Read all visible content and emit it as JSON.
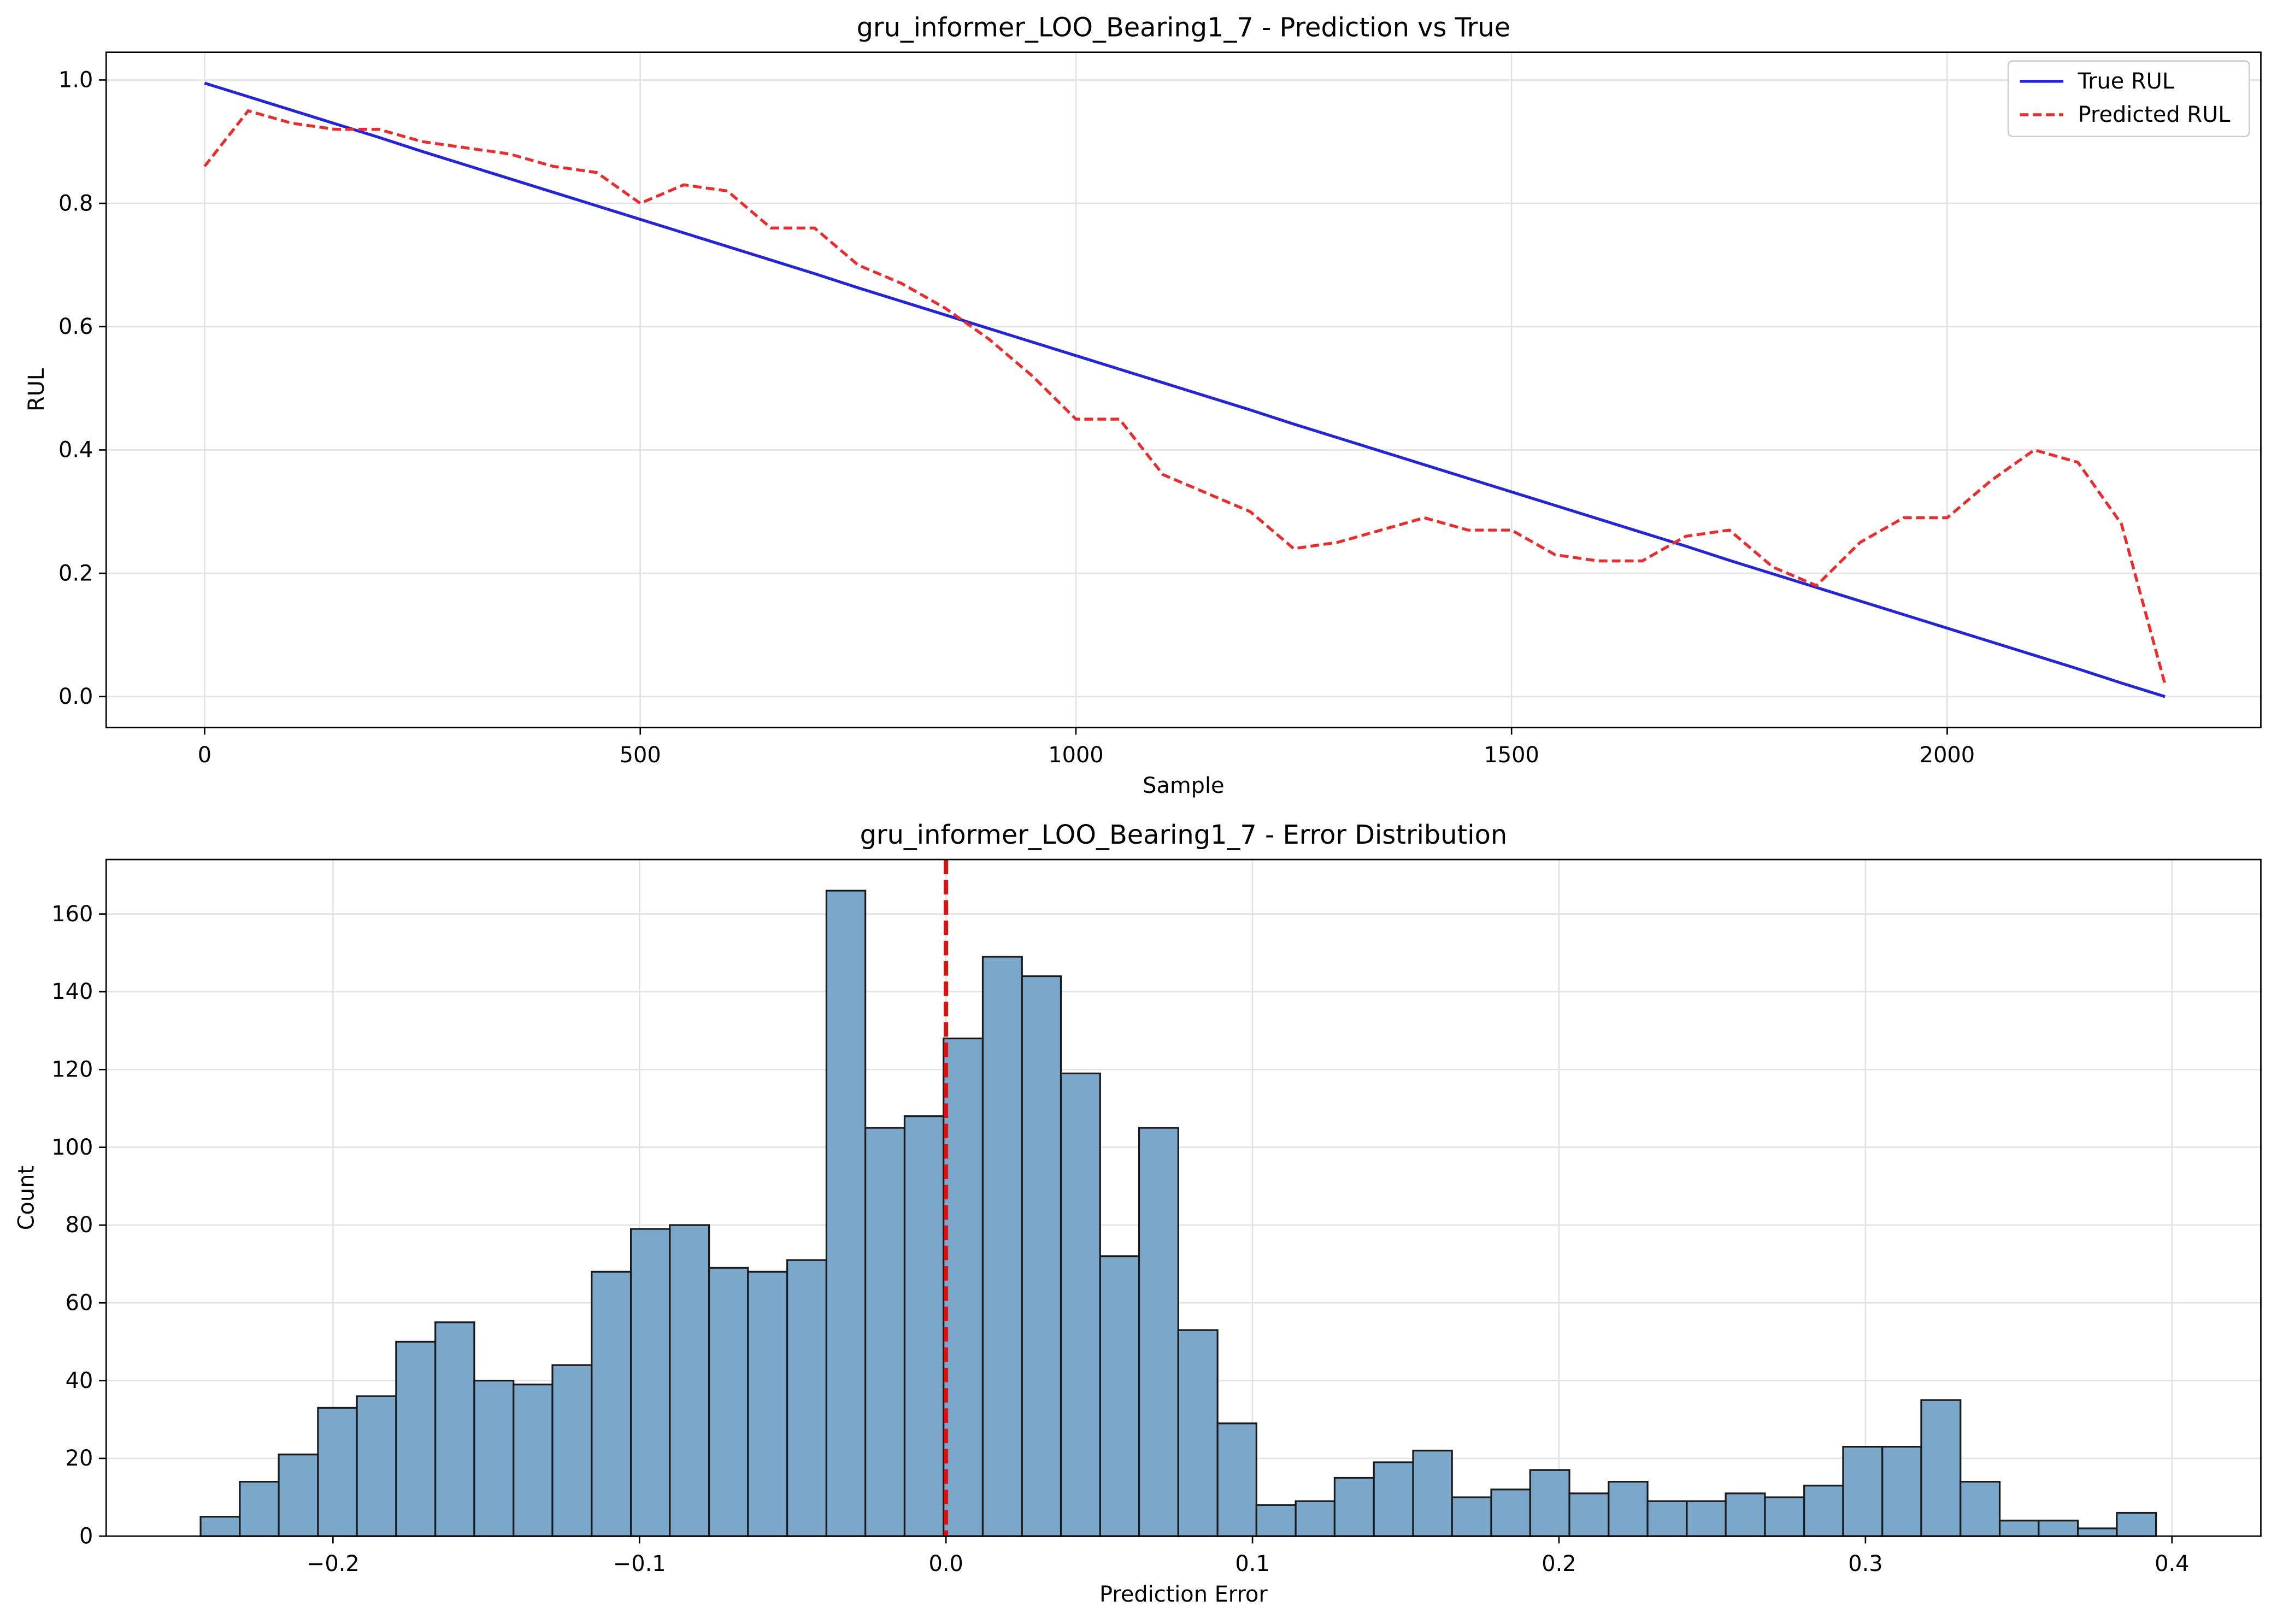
{
  "chart_data": [
    {
      "type": "line",
      "title": "gru_informer_LOO_Bearing1_7 - Prediction vs True",
      "xlabel": "Sample",
      "ylabel": "RUL",
      "x": [
        0,
        50,
        100,
        150,
        200,
        250,
        300,
        350,
        400,
        450,
        500,
        550,
        600,
        650,
        700,
        750,
        800,
        850,
        900,
        950,
        1000,
        1050,
        1100,
        1150,
        1200,
        1250,
        1300,
        1350,
        1400,
        1450,
        1500,
        1550,
        1600,
        1650,
        1700,
        1750,
        1800,
        1850,
        1900,
        1950,
        2000,
        2050,
        2100,
        2150,
        2200,
        2250
      ],
      "series": [
        {
          "name": "True RUL",
          "color": "#2323e0",
          "dash": false,
          "values": [
            0.995,
            0.973,
            0.951,
            0.929,
            0.907,
            0.884,
            0.862,
            0.84,
            0.818,
            0.796,
            0.774,
            0.752,
            0.73,
            0.708,
            0.686,
            0.663,
            0.641,
            0.619,
            0.597,
            0.575,
            0.553,
            0.531,
            0.509,
            0.487,
            0.465,
            0.442,
            0.42,
            0.398,
            0.376,
            0.354,
            0.332,
            0.31,
            0.288,
            0.266,
            0.244,
            0.221,
            0.199,
            0.177,
            0.155,
            0.133,
            0.111,
            0.089,
            0.067,
            0.045,
            0.022,
            0.0
          ]
        },
        {
          "name": "Predicted RUL",
          "color": "#ee2a2a",
          "dash": true,
          "values": [
            0.86,
            0.95,
            0.93,
            0.92,
            0.92,
            0.9,
            0.89,
            0.88,
            0.86,
            0.85,
            0.8,
            0.83,
            0.82,
            0.76,
            0.76,
            0.7,
            0.67,
            0.63,
            0.58,
            0.52,
            0.45,
            0.45,
            0.36,
            0.33,
            0.3,
            0.24,
            0.25,
            0.27,
            0.29,
            0.27,
            0.27,
            0.23,
            0.22,
            0.22,
            0.26,
            0.27,
            0.21,
            0.18,
            0.25,
            0.29,
            0.29,
            0.35,
            0.4,
            0.38,
            0.28,
            0.02
          ]
        }
      ],
      "xlim": [
        -113,
        2360
      ],
      "ylim": [
        -0.05,
        1.045
      ],
      "xticks": [
        0,
        500,
        1000,
        1500,
        2000
      ],
      "yticks": [
        {
          "value": 0,
          "label": "0.0"
        },
        0.2,
        0.4,
        0.6,
        0.8,
        {
          "value": 1,
          "label": "1.0"
        }
      ],
      "grid": true,
      "legend": "upper-right"
    },
    {
      "type": "histogram",
      "title": "gru_informer_LOO_Bearing1_7 - Error Distribution",
      "xlabel": "Prediction Error",
      "ylabel": "Count",
      "color": "#7ba7cb",
      "edgecolor": "#1a1a1a",
      "bins": [
        -0.2432,
        -0.2304,
        -0.2177,
        -0.2049,
        -0.1922,
        -0.1794,
        -0.1666,
        -0.1539,
        -0.1411,
        -0.1284,
        -0.1156,
        -0.1028,
        -0.0901,
        -0.0773,
        -0.0646,
        -0.0518,
        -0.039,
        -0.0263,
        -0.0135,
        -0.0008,
        0.012,
        0.0248,
        0.0375,
        0.0503,
        0.063,
        0.0758,
        0.0886,
        0.1013,
        0.1141,
        0.1268,
        0.1396,
        0.1524,
        0.1651,
        0.1779,
        0.1906,
        0.2034,
        0.2162,
        0.2289,
        0.2417,
        0.2544,
        0.2672,
        0.28,
        0.2927,
        0.3055,
        0.3182,
        0.331,
        0.3438,
        0.3565,
        0.3693,
        0.382,
        0.3948
      ],
      "values": [
        5,
        14,
        21,
        33,
        36,
        50,
        55,
        40,
        39,
        44,
        68,
        79,
        80,
        69,
        68,
        71,
        166,
        105,
        108,
        128,
        149,
        144,
        119,
        72,
        105,
        53,
        29,
        8,
        9,
        15,
        19,
        22,
        10,
        12,
        17,
        11,
        14,
        9,
        9,
        11,
        10,
        13,
        23,
        23,
        35,
        14,
        4,
        4,
        2,
        6
      ],
      "vline": 0,
      "vline_color": "#dd1111",
      "xlim": [
        -0.274,
        0.429
      ],
      "ylim": [
        0,
        174
      ],
      "xticks": [
        {
          "value": -0.2,
          "label": "−0.2"
        },
        {
          "value": -0.1,
          "label": "−0.1"
        },
        {
          "value": 0,
          "label": "0.0"
        },
        0.1,
        0.2,
        0.3,
        0.4
      ],
      "yticks": [
        0,
        20,
        40,
        60,
        80,
        100,
        120,
        140,
        160
      ],
      "grid": true
    }
  ]
}
